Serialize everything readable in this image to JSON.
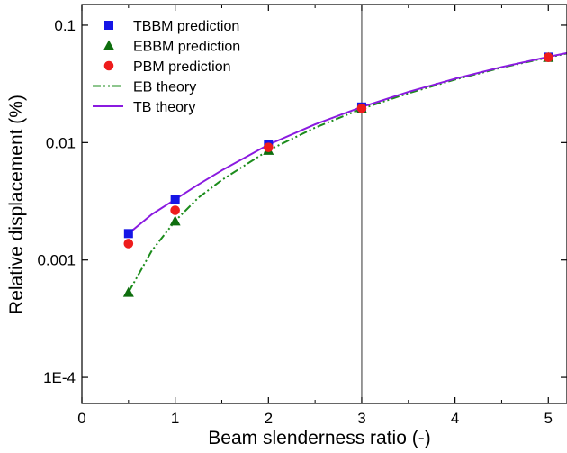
{
  "chart_data": {
    "type": "scatter",
    "title": "",
    "xlabel": "Beam slenderness ratio (-)",
    "ylabel": "Relative displacement (%)",
    "xlim": [
      0,
      5.2
    ],
    "ylim": [
      6e-05,
      0.15
    ],
    "yscale": "log",
    "x_ticks": [
      0,
      1,
      2,
      3,
      4,
      5
    ],
    "x_tick_labels": [
      "0",
      "1",
      "2",
      "3",
      "4",
      "5"
    ],
    "y_ticks": [
      0.0001,
      0.001,
      0.01,
      0.1
    ],
    "y_tick_labels": [
      "1E-4",
      "0.001",
      "0.01",
      "0.1"
    ],
    "grid": false,
    "legend_position": "top-left",
    "reference_line_x": 3,
    "series": [
      {
        "name": "TBBM prediction",
        "kind": "marker",
        "marker": "square",
        "color": "#1515e6",
        "x": [
          0.5,
          1,
          2,
          3,
          5
        ],
        "y": [
          0.00168,
          0.00328,
          0.0096,
          0.0201,
          0.0535
        ]
      },
      {
        "name": "EBBM prediction",
        "kind": "marker",
        "marker": "triangle",
        "color": "#0e6e0e",
        "x": [
          0.5,
          1,
          2,
          3,
          5
        ],
        "y": [
          0.00053,
          0.00215,
          0.0086,
          0.0194,
          0.0531
        ]
      },
      {
        "name": "PBM prediction",
        "kind": "marker",
        "marker": "circle",
        "color": "#ee1c1c",
        "x": [
          0.5,
          1,
          2,
          3,
          5
        ],
        "y": [
          0.00138,
          0.00265,
          0.0091,
          0.0196,
          0.0532
        ]
      },
      {
        "name": "EB theory",
        "kind": "line",
        "dash": "dash-dot-dot",
        "color": "#1c8c1c",
        "x": [
          0.5,
          0.75,
          1,
          1.25,
          1.5,
          2,
          2.5,
          3,
          3.5,
          4,
          4.5,
          5,
          5.2
        ],
        "y": [
          0.00053,
          0.0012,
          0.00215,
          0.0034,
          0.0048,
          0.0086,
          0.0134,
          0.0194,
          0.0263,
          0.0344,
          0.0435,
          0.0531,
          0.0575
        ]
      },
      {
        "name": "TB theory",
        "kind": "line",
        "dash": "solid",
        "color": "#8a1ae0",
        "x": [
          0.5,
          0.75,
          1,
          1.25,
          1.5,
          2,
          2.5,
          3,
          3.5,
          4,
          4.5,
          5,
          5.2
        ],
        "y": [
          0.00168,
          0.00245,
          0.00328,
          0.0044,
          0.0058,
          0.0096,
          0.0143,
          0.0201,
          0.027,
          0.035,
          0.044,
          0.0537,
          0.058
        ]
      }
    ]
  }
}
